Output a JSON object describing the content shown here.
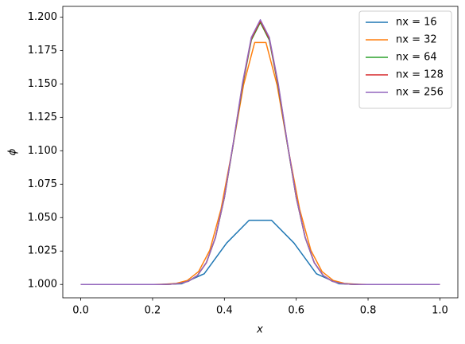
{
  "chart_data": {
    "type": "line",
    "xlabel": "x",
    "ylabel": "ϕ",
    "xlim": [
      -0.05,
      1.05
    ],
    "ylim": [
      0.99,
      1.208
    ],
    "xticks": [
      {
        "value": 0,
        "label": "0.0"
      },
      {
        "value": 0.2,
        "label": "0.2"
      },
      {
        "value": 0.4,
        "label": "0.4"
      },
      {
        "value": 0.6,
        "label": "0.6"
      },
      {
        "value": 0.8,
        "label": "0.8"
      },
      {
        "value": 1,
        "label": "1.0"
      }
    ],
    "yticks": [
      {
        "value": 1,
        "label": "1.000"
      },
      {
        "value": 1.025,
        "label": "1.025"
      },
      {
        "value": 1.05,
        "label": "1.050"
      },
      {
        "value": 1.075,
        "label": "1.075"
      },
      {
        "value": 1.1,
        "label": "1.100"
      },
      {
        "value": 1.125,
        "label": "1.125"
      },
      {
        "value": 1.15,
        "label": "1.150"
      },
      {
        "value": 1.175,
        "label": "1.175"
      },
      {
        "value": 1.2,
        "label": "1.200"
      }
    ],
    "legend": "upper right",
    "series": [
      {
        "name": "nx = 16",
        "color": "#1f77b4",
        "x": [
          0,
          0.03125,
          0.09375,
          0.15625,
          0.21875,
          0.28125,
          0.34375,
          0.40625,
          0.46875,
          0.53125,
          0.59375,
          0.65625,
          0.71875,
          0.78125,
          0.84375,
          0.90625,
          0.96875,
          1
        ],
        "values": [
          1,
          1,
          1,
          1,
          1,
          1.0005,
          1.008,
          1.031,
          1.048,
          1.048,
          1.031,
          1.008,
          1.0005,
          1,
          1,
          1,
          1,
          1
        ]
      },
      {
        "name": "nx = 32",
        "color": "#ff7f0e",
        "x": [
          0,
          0.015625,
          0.046875,
          0.078125,
          0.109375,
          0.140625,
          0.171875,
          0.203125,
          0.234375,
          0.265625,
          0.296875,
          0.328125,
          0.359375,
          0.390625,
          0.421875,
          0.453125,
          0.484375,
          0.515625,
          0.546875,
          0.578125,
          0.609375,
          0.640625,
          0.671875,
          0.703125,
          0.734375,
          0.765625,
          0.796875,
          0.828125,
          0.859375,
          0.890625,
          0.921875,
          0.953125,
          0.984375,
          1
        ],
        "values": [
          1,
          1,
          1,
          1,
          1,
          1,
          1,
          1,
          1.0002,
          1.0008,
          1.003,
          1.0096,
          1.0256,
          1.0564,
          1.1007,
          1.149,
          1.181,
          1.181,
          1.149,
          1.1007,
          1.0564,
          1.0256,
          1.0096,
          1.003,
          1.0008,
          1.0002,
          1,
          1,
          1,
          1,
          1,
          1,
          1,
          1
        ]
      },
      {
        "name": "nx = 64",
        "color": "#2ca02c",
        "x": [
          0,
          0.025,
          0.05,
          0.075,
          0.1,
          0.125,
          0.15,
          0.175,
          0.2,
          0.225,
          0.25,
          0.275,
          0.3,
          0.325,
          0.35,
          0.375,
          0.4,
          0.425,
          0.45,
          0.475,
          0.5,
          0.525,
          0.55,
          0.575,
          0.6,
          0.625,
          0.65,
          0.675,
          0.7,
          0.725,
          0.75,
          0.775,
          0.8,
          0.825,
          0.85,
          0.875,
          0.9,
          0.925,
          0.95,
          0.975,
          1
        ],
        "values": [
          1,
          1,
          1,
          1,
          1,
          1,
          1,
          1,
          1,
          1,
          1.0002,
          1.0007,
          1.0024,
          1.0067,
          1.0164,
          1.035,
          1.065,
          1.1055,
          1.148,
          1.1828,
          1.196,
          1.1828,
          1.148,
          1.1055,
          1.065,
          1.035,
          1.0164,
          1.0067,
          1.0024,
          1.0007,
          1.0002,
          1,
          1,
          1,
          1,
          1,
          1,
          1,
          1,
          1,
          1
        ]
      },
      {
        "name": "nx = 128",
        "color": "#d62728",
        "x": [
          0,
          0.025,
          0.05,
          0.075,
          0.1,
          0.125,
          0.15,
          0.175,
          0.2,
          0.225,
          0.25,
          0.275,
          0.3,
          0.325,
          0.35,
          0.375,
          0.4,
          0.425,
          0.45,
          0.475,
          0.5,
          0.525,
          0.55,
          0.575,
          0.6,
          0.625,
          0.65,
          0.675,
          0.7,
          0.725,
          0.75,
          0.775,
          0.8,
          0.825,
          0.85,
          0.875,
          0.9,
          0.925,
          0.95,
          0.975,
          1
        ],
        "values": [
          1,
          1,
          1,
          1,
          1,
          1,
          1,
          1,
          1,
          1,
          1.0002,
          1.0007,
          1.0024,
          1.0067,
          1.0164,
          1.0351,
          1.0652,
          1.106,
          1.149,
          1.1838,
          1.197,
          1.1838,
          1.149,
          1.106,
          1.0652,
          1.0351,
          1.0164,
          1.0067,
          1.0024,
          1.0007,
          1.0002,
          1,
          1,
          1,
          1,
          1,
          1,
          1,
          1,
          1,
          1
        ]
      },
      {
        "name": "nx = 256",
        "color": "#9467bd",
        "x": [
          0,
          0.025,
          0.05,
          0.075,
          0.1,
          0.125,
          0.15,
          0.175,
          0.2,
          0.225,
          0.25,
          0.275,
          0.3,
          0.325,
          0.35,
          0.375,
          0.4,
          0.425,
          0.45,
          0.475,
          0.5,
          0.525,
          0.55,
          0.575,
          0.6,
          0.625,
          0.65,
          0.675,
          0.7,
          0.725,
          0.75,
          0.775,
          0.8,
          0.825,
          0.85,
          0.875,
          0.9,
          0.925,
          0.95,
          0.975,
          1
        ],
        "values": [
          1,
          1,
          1,
          1,
          1,
          1,
          1,
          1,
          1,
          1,
          1.0002,
          1.0007,
          1.0024,
          1.0067,
          1.0164,
          1.0351,
          1.0654,
          1.1062,
          1.15,
          1.1848,
          1.198,
          1.1848,
          1.15,
          1.1062,
          1.0654,
          1.0351,
          1.0164,
          1.0067,
          1.0024,
          1.0007,
          1.0002,
          1,
          1,
          1,
          1,
          1,
          1,
          1,
          1,
          1,
          1
        ]
      }
    ]
  }
}
